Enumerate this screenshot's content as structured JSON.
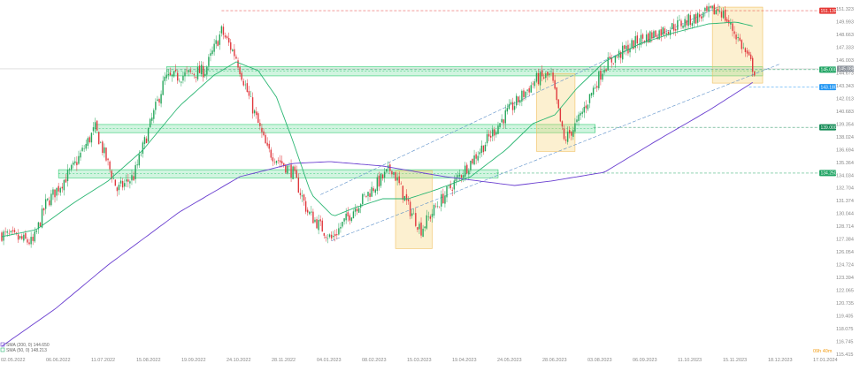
{
  "chart_data": {
    "type": "candlestick",
    "title": "",
    "series_note": "Daily candles",
    "y_ticks": [
      "151.323",
      "149.993",
      "148.663",
      "147.333",
      "146.003",
      "144.673",
      "143.343",
      "142.013",
      "140.683",
      "139.354",
      "138.024",
      "136.694",
      "135.364",
      "134.034",
      "132.704",
      "131.374",
      "130.044",
      "128.714",
      "127.384",
      "126.054",
      "124.724",
      "123.394",
      "122.065",
      "120.735",
      "119.405",
      "118.075",
      "116.745",
      "115.415"
    ],
    "ylim": [
      115.415,
      151.323
    ],
    "x_ticks": [
      "02.05.2022",
      "06.06.2022",
      "11.07.2022",
      "15.08.2022",
      "19.09.2022",
      "24.10.2022",
      "28.11.2022",
      "04.01.2023",
      "08.02.2023",
      "15.03.2023",
      "19.04.2023",
      "24.05.2023",
      "28.06.2023",
      "03.08.2023",
      "06.09.2023",
      "11.10.2023",
      "15.11.2023",
      "18.12.2023",
      "17.01.2024"
    ],
    "price_path": [
      [
        0,
        127.9
      ],
      [
        17,
        127.0
      ],
      [
        24,
        131.0
      ],
      [
        39,
        134.8
      ],
      [
        51,
        138.9
      ],
      [
        63,
        132.5
      ],
      [
        72,
        133.9
      ],
      [
        89,
        144.0
      ],
      [
        111,
        144.9
      ],
      [
        120,
        149.0
      ],
      [
        128,
        146.3
      ],
      [
        135,
        142.1
      ],
      [
        145,
        136.6
      ],
      [
        159,
        134.3
      ],
      [
        167,
        130.2
      ],
      [
        180,
        127.4
      ],
      [
        193,
        130.7
      ],
      [
        213,
        134.8
      ],
      [
        222,
        130.7
      ],
      [
        229,
        128.4
      ],
      [
        237,
        130.7
      ],
      [
        246,
        133.0
      ],
      [
        261,
        136.6
      ],
      [
        275,
        140.3
      ],
      [
        292,
        144.0
      ],
      [
        300,
        144.4
      ],
      [
        307,
        137.6
      ],
      [
        314,
        139.4
      ],
      [
        329,
        145.4
      ],
      [
        348,
        148.1
      ],
      [
        367,
        149.5
      ],
      [
        386,
        150.9
      ],
      [
        392,
        151.3
      ],
      [
        401,
        148.6
      ],
      [
        411,
        144.9
      ]
    ],
    "indicators": [
      {
        "name": "SMA (200, 0)",
        "value": "144.650",
        "color": "#6a3fd0",
        "path": [
          [
            0,
            116.24
          ],
          [
            29,
            120.1
          ],
          [
            58,
            124.69
          ],
          [
            97,
            130.2
          ],
          [
            130,
            133.87
          ],
          [
            159,
            135.25
          ],
          [
            179,
            135.44
          ],
          [
            208,
            134.98
          ],
          [
            242,
            133.87
          ],
          [
            280,
            132.96
          ],
          [
            300,
            133.42
          ],
          [
            329,
            134.33
          ],
          [
            357,
            137.55
          ],
          [
            386,
            140.76
          ],
          [
            411,
            143.79
          ]
        ]
      },
      {
        "name": "SMA (50, 0)",
        "value": "148.213",
        "color": "#2bb673",
        "path": [
          [
            0,
            127.63
          ],
          [
            19,
            128.37
          ],
          [
            39,
            131.12
          ],
          [
            58,
            133.42
          ],
          [
            77,
            136.63
          ],
          [
            97,
            141.22
          ],
          [
            116,
            144.44
          ],
          [
            128,
            145.81
          ],
          [
            140,
            144.9
          ],
          [
            150,
            142.14
          ],
          [
            159,
            137.55
          ],
          [
            169,
            132.04
          ],
          [
            181,
            129.74
          ],
          [
            193,
            130.66
          ],
          [
            208,
            131.58
          ],
          [
            222,
            131.58
          ],
          [
            237,
            132.5
          ],
          [
            256,
            133.87
          ],
          [
            275,
            136.63
          ],
          [
            290,
            139.39
          ],
          [
            302,
            140.3
          ],
          [
            314,
            143.06
          ],
          [
            329,
            145.81
          ],
          [
            348,
            147.65
          ],
          [
            367,
            148.84
          ],
          [
            386,
            149.76
          ],
          [
            401,
            149.95
          ],
          [
            411,
            149.49
          ]
        ]
      }
    ],
    "levels": [
      {
        "label": "151.130",
        "price": 151.13,
        "color": "#e53935",
        "from_bar": 120
      },
      {
        "label": "145.000",
        "price": 145.0,
        "color": "#1fa463",
        "from_bar": 90
      },
      {
        "label": "143.180",
        "price": 143.18,
        "color": "#2196f3",
        "from_bar": 408
      },
      {
        "label": "139.000",
        "price": 139.0,
        "color": "#128a55",
        "from_bar": 323
      },
      {
        "label": "134.250",
        "price": 134.25,
        "color": "#1fa463",
        "from_bar": 270
      }
    ],
    "current_price": {
      "label": "145.088",
      "price": 145.088,
      "color": "#8a9099"
    },
    "support_zones": [
      {
        "from_bar": 90,
        "to_bar": 416,
        "high": 145.3,
        "low": 144.35
      },
      {
        "from_bar": 51,
        "to_bar": 324,
        "high": 139.3,
        "low": 138.45
      },
      {
        "from_bar": 31,
        "to_bar": 271,
        "high": 134.6,
        "low": 133.75
      }
    ],
    "highlight_boxes": [
      {
        "from_bar": 215,
        "to_bar": 235,
        "high": 134.5,
        "low": 126.4
      },
      {
        "from_bar": 292,
        "to_bar": 313,
        "high": 144.6,
        "low": 136.5
      },
      {
        "from_bar": 388,
        "to_bar": 416,
        "high": 151.5,
        "low": 143.6
      }
    ],
    "channel": [
      {
        "from": [
          174,
          132.0
        ],
        "to": [
          392,
          151.6
        ]
      },
      {
        "from": [
          180,
          127.2
        ],
        "to": [
          425,
          145.6
        ]
      }
    ],
    "countdown": {
      "hours": "09h",
      "minutes": "40m"
    }
  }
}
